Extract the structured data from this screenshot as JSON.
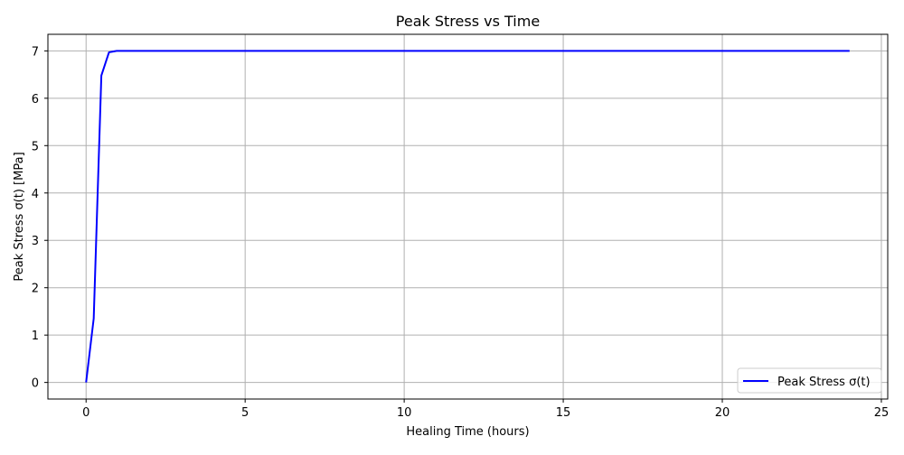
{
  "chart_data": {
    "type": "line",
    "title": "Peak Stress vs Time",
    "xlabel": "Healing Time (hours)",
    "ylabel": "Peak Stress σ(t) [MPa]",
    "xlim": [
      -1.2,
      25.2
    ],
    "ylim": [
      -0.35,
      7.35
    ],
    "x_ticks": [
      0,
      5,
      10,
      15,
      20,
      25
    ],
    "y_ticks": [
      0,
      1,
      2,
      3,
      4,
      5,
      6,
      7
    ],
    "grid": true,
    "legend_position": "bottom-right",
    "series": [
      {
        "name": "Peak Stress σ(t)",
        "color": "#0000ff",
        "x": [
          0,
          0.24,
          0.48,
          0.72,
          0.96,
          1.2,
          2,
          4,
          8,
          12,
          16,
          20,
          24
        ],
        "y": [
          0,
          1.35,
          6.48,
          6.97,
          7.0,
          7.0,
          7.0,
          7.0,
          7.0,
          7.0,
          7.0,
          7.0,
          7.0
        ]
      }
    ]
  }
}
